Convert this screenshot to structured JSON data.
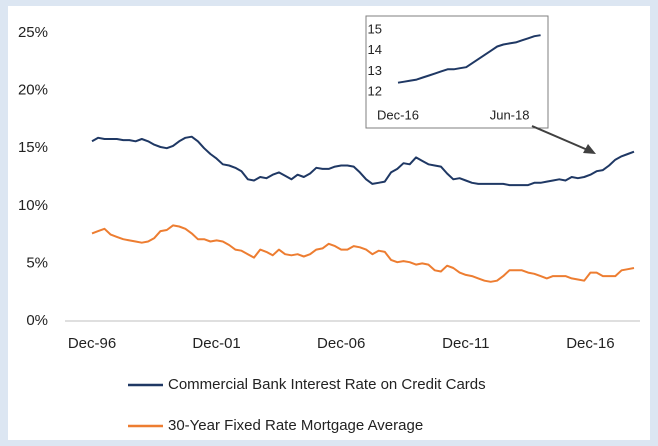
{
  "chart_data": [
    {
      "type": "line",
      "categories": [
        "Dec-96",
        null,
        null,
        null,
        null,
        null,
        null,
        null,
        null,
        null,
        null,
        null,
        null,
        null,
        null,
        null,
        null,
        null,
        null,
        null,
        "Dec-01",
        null,
        null,
        null,
        null,
        null,
        null,
        null,
        null,
        null,
        null,
        null,
        null,
        null,
        null,
        null,
        null,
        null,
        null,
        null,
        "Dec-06",
        null,
        null,
        null,
        null,
        null,
        null,
        null,
        null,
        null,
        null,
        null,
        null,
        null,
        null,
        null,
        null,
        null,
        null,
        null,
        "Dec-11",
        null,
        null,
        null,
        null,
        null,
        null,
        null,
        null,
        null,
        null,
        null,
        null,
        null,
        null,
        null,
        null,
        null,
        null,
        null,
        "Dec-16",
        null,
        null,
        null,
        null,
        null,
        null,
        null
      ],
      "series": [
        {
          "name": "Commercial Bank Interest Rate on Credit Cards",
          "color": "#1f3864",
          "values": [
            15.6,
            15.9,
            15.8,
            15.8,
            15.8,
            15.7,
            15.7,
            15.6,
            15.8,
            15.6,
            15.3,
            15.1,
            15.0,
            15.2,
            15.6,
            15.9,
            16.0,
            15.6,
            15.0,
            14.5,
            14.1,
            13.6,
            13.5,
            13.3,
            13.0,
            12.3,
            12.2,
            12.5,
            12.4,
            12.7,
            12.9,
            12.6,
            12.3,
            12.7,
            12.5,
            12.8,
            13.3,
            13.2,
            13.2,
            13.4,
            13.5,
            13.5,
            13.4,
            12.9,
            12.3,
            11.9,
            12.0,
            12.1,
            12.9,
            13.2,
            13.7,
            13.6,
            14.2,
            13.9,
            13.6,
            13.5,
            13.4,
            12.8,
            12.3,
            12.4,
            12.2,
            12.0,
            11.9,
            11.9,
            11.9,
            11.9,
            11.9,
            11.8,
            11.8,
            11.8,
            11.8,
            12.0,
            12.0,
            12.1,
            12.2,
            12.3,
            12.2,
            12.5,
            12.4,
            12.5,
            12.7,
            13.0,
            13.1,
            13.5,
            14.0,
            14.3,
            14.5,
            14.7
          ]
        },
        {
          "name": "30-Year Fixed Rate Mortgage Average",
          "color": "#ed7d31",
          "values": [
            7.6,
            7.8,
            8.0,
            7.5,
            7.3,
            7.1,
            7.0,
            6.9,
            6.8,
            6.9,
            7.2,
            7.8,
            7.9,
            8.3,
            8.2,
            8.0,
            7.6,
            7.1,
            7.1,
            6.9,
            7.0,
            6.9,
            6.6,
            6.2,
            6.1,
            5.8,
            5.5,
            6.2,
            6.0,
            5.7,
            6.2,
            5.8,
            5.7,
            5.8,
            5.6,
            5.8,
            6.2,
            6.3,
            6.7,
            6.5,
            6.2,
            6.2,
            6.5,
            6.4,
            6.2,
            5.8,
            6.1,
            6.0,
            5.3,
            5.1,
            5.2,
            5.1,
            4.9,
            5.0,
            4.9,
            4.4,
            4.3,
            4.8,
            4.6,
            4.2,
            4.0,
            3.9,
            3.7,
            3.5,
            3.4,
            3.5,
            3.9,
            4.4,
            4.4,
            4.4,
            4.2,
            4.1,
            3.9,
            3.7,
            3.9,
            3.9,
            3.9,
            3.7,
            3.6,
            3.5,
            4.2,
            4.2,
            3.9,
            3.9,
            3.9,
            4.4,
            4.5,
            4.6
          ]
        }
      ],
      "ylim": [
        0,
        25
      ],
      "yticks": [
        {
          "value": 0,
          "label": "0%"
        },
        {
          "value": 5,
          "label": "5%"
        },
        {
          "value": 10,
          "label": "10%"
        },
        {
          "value": 15,
          "label": "15%"
        },
        {
          "value": 20,
          "label": "20%"
        },
        {
          "value": 25,
          "label": "25%"
        }
      ]
    },
    {
      "type": "line",
      "categories": [
        "Dec-16",
        null,
        null,
        null,
        null,
        null,
        null,
        null,
        null,
        null,
        null,
        null,
        null,
        null,
        null,
        null,
        null,
        null,
        "Jun-18",
        null,
        null,
        null,
        null,
        null
      ],
      "values": [
        12.45,
        12.5,
        12.55,
        12.6,
        12.7,
        12.8,
        12.9,
        13.0,
        13.1,
        13.1,
        13.15,
        13.2,
        13.4,
        13.6,
        13.8,
        14.0,
        14.2,
        14.3,
        14.35,
        14.4,
        14.5,
        14.6,
        14.7,
        14.75
      ],
      "color": "#1f3864",
      "ylim": [
        12,
        15
      ],
      "yticks": [
        12,
        13,
        14,
        15
      ]
    }
  ]
}
